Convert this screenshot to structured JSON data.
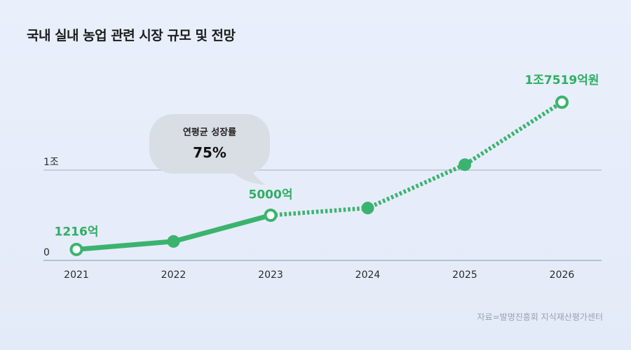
{
  "title": "국내 실내 농업 관련 시장 규모 및 전망",
  "source": "자료=발명진흥회 지식재산평가센터",
  "colors": {
    "accent": "#3bb36f",
    "grid": "#a9b0bd",
    "bubble": "#d9dde4"
  },
  "chart_data": {
    "type": "line",
    "title": "국내 실내 농업 관련 시장 규모 및 전망",
    "unit": "억 원",
    "categories": [
      "2021",
      "2022",
      "2023",
      "2024",
      "2025",
      "2026"
    ],
    "values": [
      1216,
      2100,
      5000,
      5800,
      10600,
      17519
    ],
    "actual_until": "2023",
    "forecast_from": "2023",
    "y_ticks": [
      {
        "value": 0,
        "label": "0"
      },
      {
        "value": 10000,
        "label": "1조"
      }
    ],
    "ylim": [
      0,
      17519
    ],
    "data_labels": [
      {
        "index": 0,
        "text": "1216억"
      },
      {
        "index": 2,
        "text": "5000억"
      },
      {
        "index": 5,
        "text": "1조7519억원"
      }
    ],
    "hollow_points": [
      0,
      2,
      5
    ],
    "callout": {
      "title": "연평균 성장률",
      "value": "75%"
    }
  }
}
